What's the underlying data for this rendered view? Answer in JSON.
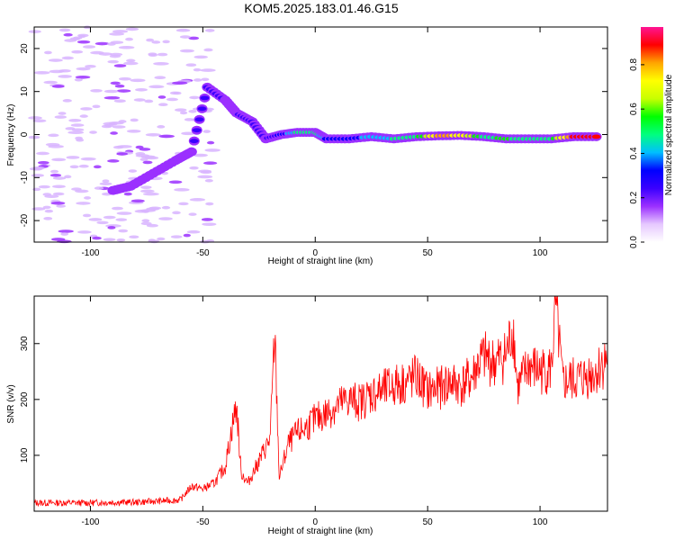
{
  "title": "KOM5.2025.183.01.46.G15",
  "chart_data": [
    {
      "type": "heatmap",
      "xlabel": "Height of straight line (km)",
      "ylabel": "Frequency (Hz)",
      "xlim": [
        -125,
        130
      ],
      "ylim": [
        -25,
        25
      ],
      "xticks": [
        -100,
        -50,
        0,
        50,
        100
      ],
      "yticks": [
        -20,
        -10,
        0,
        10,
        20
      ],
      "colorbar": {
        "label": "Normalized spectral amplitude",
        "range": [
          0,
          0.97
        ],
        "ticks": [
          0.0,
          0.2,
          0.4,
          0.6,
          0.8
        ],
        "ticklabels": [
          "0.0",
          "0.2",
          "0.4",
          "0.6",
          "0.8"
        ],
        "colormap": [
          "#ffffff",
          "#e6c8ff",
          "#9b30ff",
          "#3a00ff",
          "#0000ff",
          "#00bfff",
          "#00ff7f",
          "#00ff00",
          "#c8ff00",
          "#ffff00",
          "#ffa500",
          "#ff0000",
          "#ff1493"
        ]
      },
      "ridge": [
        {
          "x": -90,
          "y": -13,
          "v": 0.15
        },
        {
          "x": -82,
          "y": -12,
          "v": 0.2
        },
        {
          "x": -72,
          "y": -9,
          "v": 0.15
        },
        {
          "x": -62,
          "y": -6,
          "v": 0.15
        },
        {
          "x": -55,
          "y": -4,
          "v": 0.2
        },
        {
          "x": -48,
          "y": 11,
          "v": 0.25
        },
        {
          "x": -40,
          "y": 8,
          "v": 0.2
        },
        {
          "x": -35,
          "y": 5,
          "v": 0.2
        },
        {
          "x": -28,
          "y": 3,
          "v": 0.25
        },
        {
          "x": -22,
          "y": -1,
          "v": 0.2
        },
        {
          "x": -15,
          "y": 0,
          "v": 0.3
        },
        {
          "x": -8,
          "y": 0.5,
          "v": 0.45
        },
        {
          "x": 0,
          "y": 0.5,
          "v": 0.5
        },
        {
          "x": 5,
          "y": -1,
          "v": 0.35
        },
        {
          "x": 15,
          "y": -1,
          "v": 0.3
        },
        {
          "x": 25,
          "y": -0.5,
          "v": 0.4
        },
        {
          "x": 35,
          "y": -1,
          "v": 0.45
        },
        {
          "x": 45,
          "y": -0.5,
          "v": 0.5
        },
        {
          "x": 55,
          "y": -0.3,
          "v": 0.8
        },
        {
          "x": 65,
          "y": -0.2,
          "v": 0.75
        },
        {
          "x": 75,
          "y": -0.5,
          "v": 0.5
        },
        {
          "x": 85,
          "y": -1,
          "v": 0.55
        },
        {
          "x": 95,
          "y": -1,
          "v": 0.45
        },
        {
          "x": 105,
          "y": -1,
          "v": 0.5
        },
        {
          "x": 115,
          "y": -0.5,
          "v": 0.9
        },
        {
          "x": 125,
          "y": -0.5,
          "v": 0.85
        }
      ]
    },
    {
      "type": "line",
      "xlabel": "Height of straight line (km)",
      "ylabel": "SNR (v/v)",
      "xlim": [
        -125,
        130
      ],
      "ylim": [
        0,
        385
      ],
      "xticks": [
        -100,
        -50,
        0,
        50,
        100
      ],
      "yticks": [
        100,
        200,
        300
      ],
      "color": "#ff0000",
      "series": [
        {
          "x": [
            -125,
            -110,
            -100,
            -90,
            -80,
            -70,
            -60,
            -55,
            -50,
            -45,
            -40,
            -37,
            -35,
            -33,
            -30,
            -25,
            -20,
            -18,
            -16,
            -12,
            -8,
            -4,
            0,
            5,
            10,
            15,
            20,
            25,
            30,
            35,
            40,
            45,
            50,
            55,
            60,
            65,
            70,
            72,
            75,
            80,
            85,
            88,
            90,
            95,
            100,
            105,
            107,
            110,
            115,
            120,
            125,
            130
          ],
          "values": [
            15,
            15,
            15,
            16,
            16,
            18,
            20,
            45,
            40,
            50,
            80,
            150,
            190,
            70,
            50,
            90,
            130,
            320,
            60,
            120,
            140,
            150,
            165,
            175,
            190,
            200,
            195,
            210,
            215,
            225,
            230,
            240,
            215,
            220,
            230,
            225,
            240,
            260,
            275,
            265,
            280,
            330,
            220,
            260,
            250,
            255,
            370,
            230,
            235,
            240,
            250,
            275
          ]
        }
      ]
    }
  ]
}
